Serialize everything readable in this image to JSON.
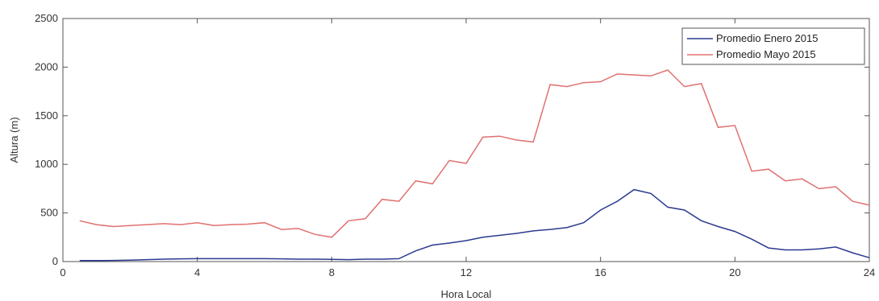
{
  "chart_data": {
    "type": "line",
    "title": "",
    "xlabel": "Hora Local",
    "ylabel": "Altura (m)",
    "xlim": [
      0,
      24
    ],
    "ylim": [
      0,
      2500
    ],
    "xticks": [
      0,
      4,
      8,
      12,
      16,
      20,
      24
    ],
    "yticks": [
      0,
      500,
      1000,
      1500,
      2000,
      2500
    ],
    "grid": false,
    "legend_position": "top-right",
    "series": [
      {
        "name": "Promedio Enero 2015",
        "color": "#2b3a8f",
        "x": [
          0.5,
          1,
          1.5,
          2,
          2.5,
          3,
          3.5,
          4,
          4.5,
          5,
          5.5,
          6,
          6.5,
          7,
          7.5,
          8,
          8.5,
          9,
          9.5,
          10,
          10.5,
          11,
          11.5,
          12,
          12.5,
          13,
          13.5,
          14,
          14.5,
          15,
          15.5,
          16,
          16.5,
          17,
          17.5,
          18,
          18.5,
          19,
          19.5,
          20,
          20.5,
          21,
          21.5,
          22,
          22.5,
          23,
          23.5,
          24
        ],
        "values": [
          10,
          10,
          12,
          15,
          20,
          25,
          28,
          30,
          30,
          30,
          30,
          30,
          28,
          25,
          25,
          22,
          20,
          25,
          25,
          30,
          110,
          170,
          190,
          215,
          250,
          270,
          290,
          315,
          330,
          350,
          400,
          530,
          620,
          740,
          700,
          560,
          530,
          420,
          360,
          310,
          230,
          140,
          120,
          120,
          130,
          150,
          90,
          40
        ]
      },
      {
        "name": "Promedio Mayo 2015",
        "color": "#e07070",
        "x": [
          0.5,
          1,
          1.5,
          2,
          2.5,
          3,
          3.5,
          4,
          4.5,
          5,
          5.5,
          6,
          6.5,
          7,
          7.5,
          8,
          8.5,
          9,
          9.5,
          10,
          10.5,
          11,
          11.5,
          12,
          12.5,
          13,
          13.5,
          14,
          14.5,
          15,
          15.5,
          16,
          16.5,
          17,
          17.5,
          18,
          18.5,
          19,
          19.5,
          20,
          20.5,
          21,
          21.5,
          22,
          22.5,
          23,
          23.5,
          24
        ],
        "values": [
          420,
          380,
          360,
          370,
          380,
          390,
          380,
          400,
          370,
          380,
          385,
          400,
          330,
          340,
          280,
          250,
          420,
          440,
          640,
          620,
          830,
          800,
          1040,
          1010,
          1280,
          1290,
          1250,
          1230,
          1820,
          1800,
          1840,
          1850,
          1930,
          1920,
          1910,
          1970,
          1800,
          1830,
          1380,
          1400,
          930,
          950,
          830,
          850,
          750,
          770,
          620,
          580
        ]
      }
    ]
  }
}
